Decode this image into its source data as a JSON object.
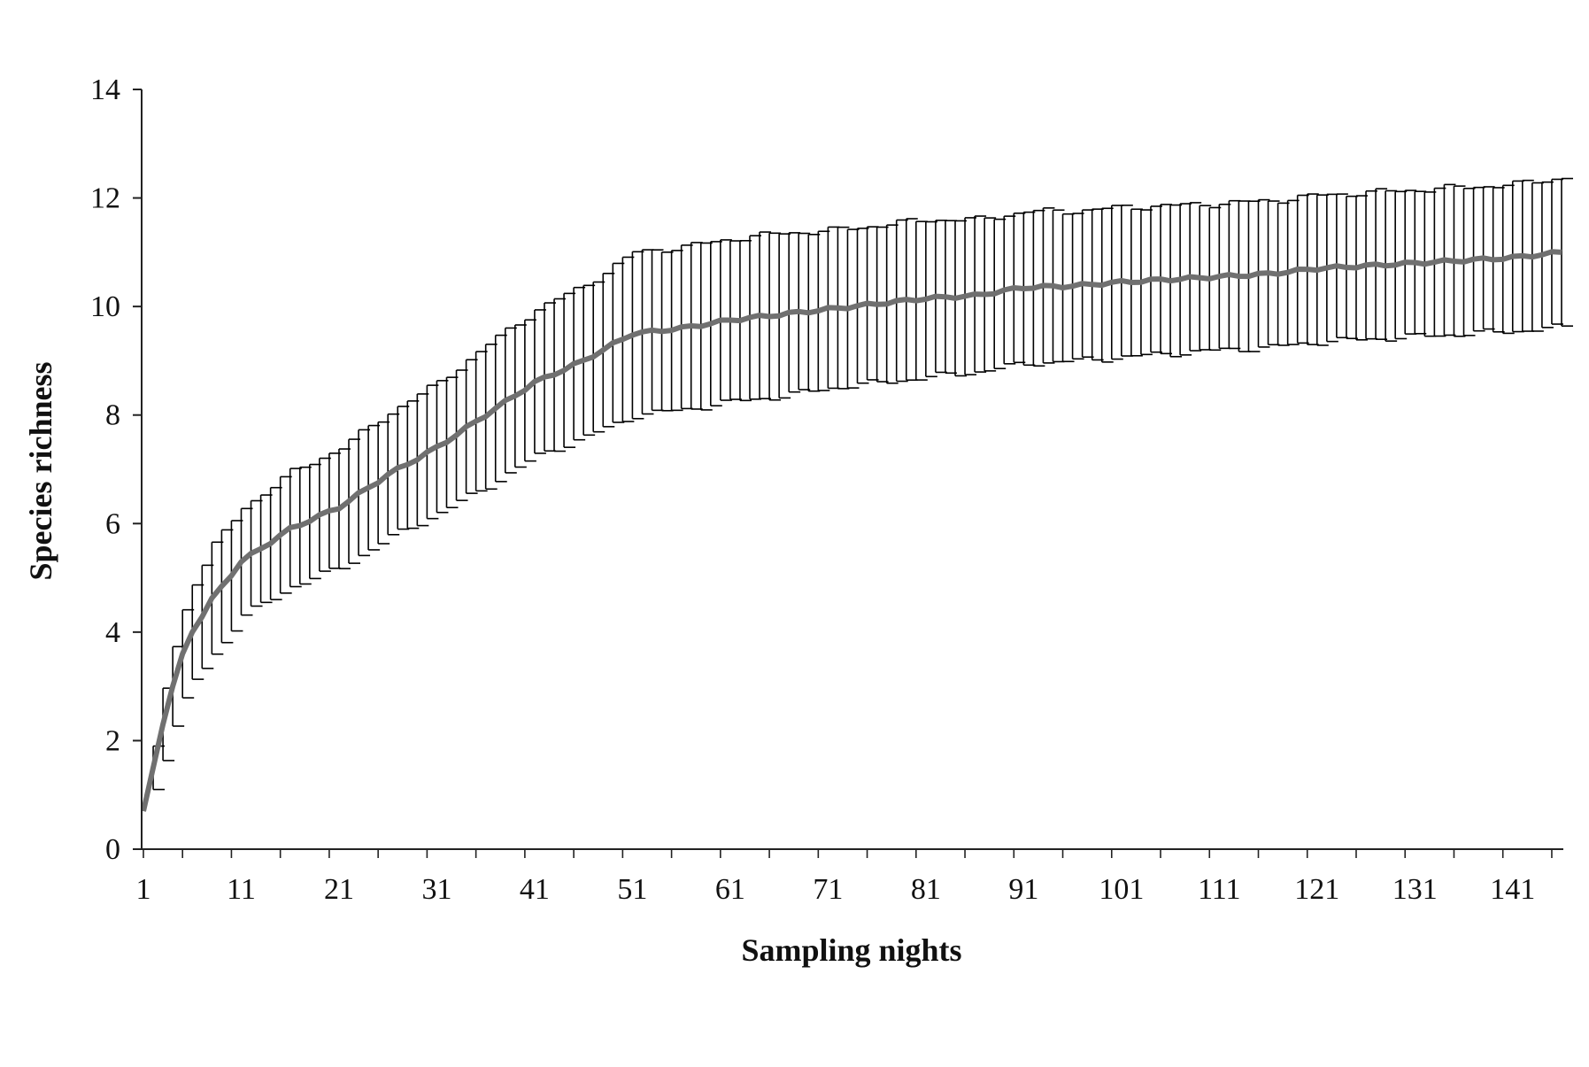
{
  "chart_data": {
    "type": "line",
    "title": "",
    "xlabel": "Sampling nights",
    "ylabel": "Species richness",
    "xlim": [
      1,
      146
    ],
    "ylim": [
      0,
      14
    ],
    "y_ticks": [
      0,
      2,
      4,
      6,
      8,
      10,
      12,
      14
    ],
    "x_tick_labels": [
      "1",
      "11",
      "21",
      "31",
      "41",
      "51",
      "61",
      "71",
      "81",
      "91",
      "101",
      "111",
      "121",
      "131",
      "141"
    ],
    "grid": false,
    "legend": "none",
    "line_color": "#707070",
    "errorbar_color": "#000000",
    "series": [
      {
        "error_bars": "± SD",
        "anchors": [
          {
            "x": 1,
            "y": 0.7,
            "err": 0.0
          },
          {
            "x": 2,
            "y": 1.5,
            "err": 0.4
          },
          {
            "x": 3,
            "y": 2.3,
            "err": 0.65
          },
          {
            "x": 4,
            "y": 3.0,
            "err": 0.75
          },
          {
            "x": 5,
            "y": 3.6,
            "err": 0.85
          },
          {
            "x": 6,
            "y": 4.0,
            "err": 0.9
          },
          {
            "x": 8,
            "y": 4.6,
            "err": 1.0
          },
          {
            "x": 11,
            "y": 5.3,
            "err": 1.0
          },
          {
            "x": 16,
            "y": 5.9,
            "err": 1.05
          },
          {
            "x": 21,
            "y": 6.3,
            "err": 1.1
          },
          {
            "x": 26,
            "y": 6.9,
            "err": 1.15
          },
          {
            "x": 31,
            "y": 7.4,
            "err": 1.2
          },
          {
            "x": 36,
            "y": 8.0,
            "err": 1.3
          },
          {
            "x": 41,
            "y": 8.6,
            "err": 1.35
          },
          {
            "x": 46,
            "y": 9.0,
            "err": 1.4
          },
          {
            "x": 51,
            "y": 9.5,
            "err": 1.5
          },
          {
            "x": 56,
            "y": 9.6,
            "err": 1.5
          },
          {
            "x": 61,
            "y": 9.75,
            "err": 1.5
          },
          {
            "x": 66,
            "y": 9.85,
            "err": 1.5
          },
          {
            "x": 71,
            "y": 9.95,
            "err": 1.45
          },
          {
            "x": 76,
            "y": 10.05,
            "err": 1.45
          },
          {
            "x": 81,
            "y": 10.15,
            "err": 1.45
          },
          {
            "x": 86,
            "y": 10.2,
            "err": 1.4
          },
          {
            "x": 91,
            "y": 10.35,
            "err": 1.4
          },
          {
            "x": 96,
            "y": 10.38,
            "err": 1.38
          },
          {
            "x": 101,
            "y": 10.45,
            "err": 1.38
          },
          {
            "x": 106,
            "y": 10.5,
            "err": 1.36
          },
          {
            "x": 111,
            "y": 10.55,
            "err": 1.35
          },
          {
            "x": 116,
            "y": 10.6,
            "err": 1.35
          },
          {
            "x": 121,
            "y": 10.7,
            "err": 1.35
          },
          {
            "x": 126,
            "y": 10.75,
            "err": 1.35
          },
          {
            "x": 131,
            "y": 10.8,
            "err": 1.35
          },
          {
            "x": 136,
            "y": 10.85,
            "err": 1.35
          },
          {
            "x": 141,
            "y": 10.9,
            "err": 1.35
          },
          {
            "x": 146,
            "y": 11.0,
            "err": 1.38
          }
        ]
      }
    ]
  }
}
